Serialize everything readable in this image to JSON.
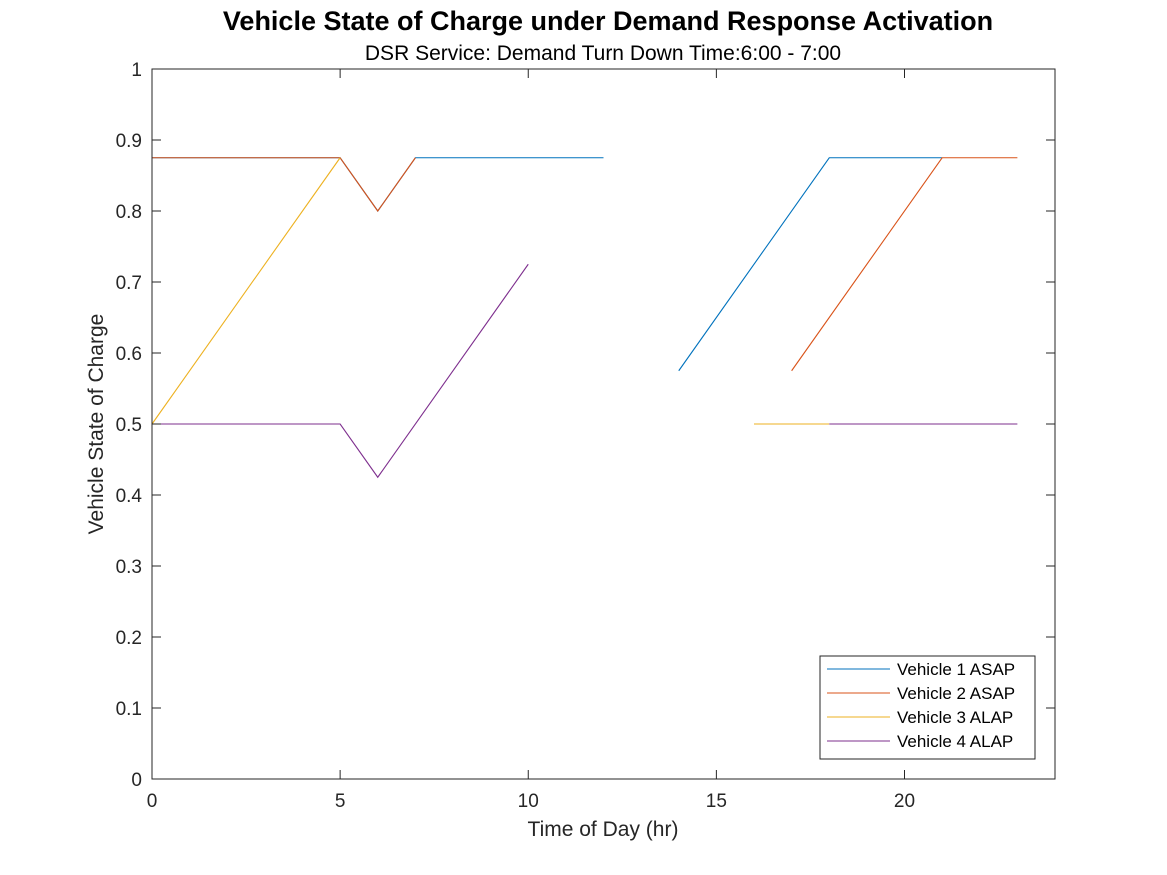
{
  "chart_data": {
    "type": "line",
    "title": "Vehicle State of Charge under Demand Response Activation",
    "subtitle": "DSR Service: Demand Turn Down Time:6:00 - 7:00",
    "xlabel": "Time of Day (hr)",
    "ylabel": "Vehicle State of Charge",
    "xlim": [
      0,
      24
    ],
    "ylim": [
      0,
      1
    ],
    "xticks": [
      0,
      5,
      10,
      15,
      20
    ],
    "yticks": [
      0,
      0.1,
      0.2,
      0.3,
      0.4,
      0.5,
      0.6,
      0.7,
      0.8,
      0.9,
      1
    ],
    "grid": false,
    "legend_location": "bottom-right",
    "series": [
      {
        "name": "Vehicle 1 ASAP",
        "color": "#0072BD",
        "segments": [
          [
            [
              0,
              0.875
            ],
            [
              5,
              0.875
            ],
            [
              6,
              0.8
            ],
            [
              7,
              0.875
            ],
            [
              12,
              0.875
            ]
          ],
          [
            [
              14,
              0.575
            ],
            [
              18,
              0.875
            ],
            [
              21,
              0.875
            ]
          ]
        ]
      },
      {
        "name": "Vehicle 2 ASAP",
        "color": "#D95319",
        "segments": [
          [
            [
              0,
              0.875
            ],
            [
              5,
              0.875
            ],
            [
              6,
              0.8
            ],
            [
              7,
              0.875
            ]
          ],
          [
            [
              17,
              0.575
            ],
            [
              21,
              0.875
            ],
            [
              23,
              0.875
            ]
          ]
        ]
      },
      {
        "name": "Vehicle 3 ALAP",
        "color": "#EDB120",
        "segments": [
          [
            [
              0,
              0.5
            ],
            [
              5,
              0.875
            ]
          ],
          [
            [
              16,
              0.5
            ],
            [
              18,
              0.5
            ]
          ]
        ]
      },
      {
        "name": "Vehicle 4 ALAP",
        "color": "#7E2F8E",
        "segments": [
          [
            [
              0,
              0.5
            ],
            [
              5,
              0.5
            ],
            [
              6,
              0.425
            ],
            [
              10,
              0.725
            ]
          ],
          [
            [
              18,
              0.5
            ],
            [
              23,
              0.5
            ]
          ]
        ]
      }
    ]
  }
}
